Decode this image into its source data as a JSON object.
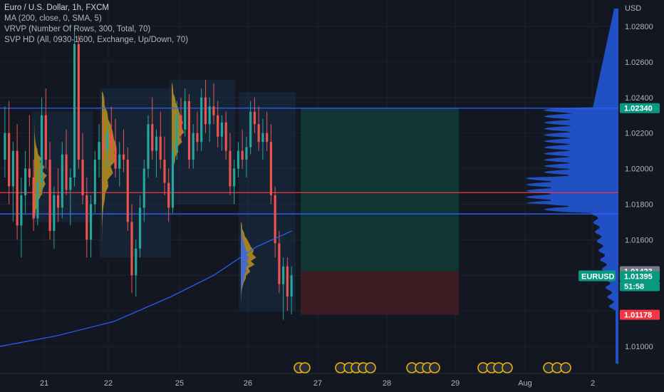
{
  "legend": {
    "title": "Euro / U.S. Dollar, 1h, FXCM",
    "lines": [
      "MA (200, close, 0, SMA, 5)",
      "VRVP (Number Of Rows, 300, Total, 70)",
      "SVP HD (All, 0930-1600, Exchange, Up/Down, 70)"
    ]
  },
  "axis": {
    "currency": "USD",
    "price_ticks": [
      "1.02800",
      "1.02600",
      "1.02400",
      "1.02200",
      "1.02000",
      "1.01800",
      "1.01600",
      "1.01000"
    ],
    "time_ticks": [
      "21",
      "22",
      "25",
      "26",
      "27",
      "28",
      "29",
      "Aug",
      "2"
    ]
  },
  "price_tags": [
    {
      "label": "1.02340",
      "bg": "#089981",
      "fg": "#ffffff"
    },
    {
      "label": "1.01423",
      "bg": "#787b86",
      "fg": "#ffffff"
    },
    {
      "label": "1.01395",
      "bg": "#089981",
      "fg": "#ffffff"
    },
    {
      "label": "51:58",
      "bg": "#089981",
      "fg": "#ffffff"
    },
    {
      "label": "1.01178",
      "bg": "#f23645",
      "fg": "#ffffff"
    }
  ],
  "symbol_tag": {
    "label": "EURUSD",
    "bg": "#089981",
    "fg": "#ffffff"
  },
  "colors": {
    "up": "#26a69a",
    "down": "#ef5350",
    "ma": "#2962ff",
    "hline_blue": "#2962ff",
    "hline_red": "#f23645",
    "profile": "#2457d6",
    "svp_up": "#2962ff",
    "svp_down": "#d4a017",
    "tp_zone": "#0f3a35",
    "sl_zone": "#3d1c24"
  },
  "chart_data": {
    "type": "candlestick",
    "symbol": "Euro / U.S. Dollar",
    "timeframe": "1h",
    "ylim": [
      1.009,
      1.03
    ],
    "price_levels": [
      1.0234,
      1.01865,
      1.01745
    ],
    "trade_box": {
      "entry": 1.01423,
      "take_profit": 1.0234,
      "stop_loss": 1.01178
    },
    "last_price": 1.01395,
    "ohlc": [
      [
        1.0205,
        1.0235,
        1.0195,
        1.022
      ],
      [
        1.022,
        1.0238,
        1.018,
        1.019
      ],
      [
        1.019,
        1.0215,
        1.017,
        1.021
      ],
      [
        1.021,
        1.0225,
        1.016,
        1.0168
      ],
      [
        1.0168,
        1.0195,
        1.015,
        1.0185
      ],
      [
        1.0185,
        1.021,
        1.0175,
        1.02
      ],
      [
        1.02,
        1.023,
        1.019,
        1.0195
      ],
      [
        1.0195,
        1.0205,
        1.0165,
        1.0172
      ],
      [
        1.0172,
        1.02,
        1.0168,
        1.0192
      ],
      [
        1.0192,
        1.024,
        1.0185,
        1.023
      ],
      [
        1.023,
        1.0245,
        1.02,
        1.0205
      ],
      [
        1.0205,
        1.0215,
        1.016,
        1.0165
      ],
      [
        1.0165,
        1.019,
        1.0155,
        1.0185
      ],
      [
        1.0185,
        1.02,
        1.017,
        1.0178
      ],
      [
        1.0178,
        1.0215,
        1.0172,
        1.0208
      ],
      [
        1.0208,
        1.0222,
        1.0185,
        1.0188
      ],
      [
        1.0188,
        1.02,
        1.0168,
        1.0195
      ],
      [
        1.0195,
        1.028,
        1.019,
        1.027
      ],
      [
        1.027,
        1.0275,
        1.02,
        1.0205
      ],
      [
        1.0205,
        1.022,
        1.018,
        1.0185
      ],
      [
        1.0185,
        1.0195,
        1.015,
        1.016
      ],
      [
        1.016,
        1.0185,
        1.015,
        1.018
      ],
      [
        1.018,
        1.021,
        1.0175,
        1.0205
      ],
      [
        1.0205,
        1.0225,
        1.0195,
        1.0215
      ],
      [
        1.0215,
        1.023,
        1.0205,
        1.021
      ],
      [
        1.021,
        1.0225,
        1.02,
        1.022
      ],
      [
        1.022,
        1.0235,
        1.0205,
        1.0212
      ],
      [
        1.0212,
        1.0228,
        1.0195,
        1.02
      ],
      [
        1.02,
        1.0215,
        1.019,
        1.0208
      ],
      [
        1.0208,
        1.0222,
        1.0198,
        1.0205
      ],
      [
        1.0205,
        1.0212,
        1.0165,
        1.017
      ],
      [
        1.017,
        1.018,
        1.013,
        1.014
      ],
      [
        1.014,
        1.016,
        1.0128,
        1.0155
      ],
      [
        1.0155,
        1.0185,
        1.015,
        1.0178
      ],
      [
        1.0178,
        1.0205,
        1.017,
        1.02
      ],
      [
        1.02,
        1.023,
        1.0195,
        1.0225
      ],
      [
        1.0225,
        1.024,
        1.0205,
        1.021
      ],
      [
        1.021,
        1.0222,
        1.0195,
        1.0218
      ],
      [
        1.0218,
        1.0232,
        1.02,
        1.0205
      ],
      [
        1.0205,
        1.0218,
        1.0185,
        1.0192
      ],
      [
        1.0192,
        1.02,
        1.017,
        1.0178
      ],
      [
        1.0178,
        1.0215,
        1.0175,
        1.021
      ],
      [
        1.021,
        1.0238,
        1.0205,
        1.023
      ],
      [
        1.023,
        1.024,
        1.0215,
        1.0222
      ],
      [
        1.0222,
        1.0245,
        1.0218,
        1.0238
      ],
      [
        1.0238,
        1.0242,
        1.02,
        1.0205
      ],
      [
        1.0205,
        1.0225,
        1.02,
        1.022
      ],
      [
        1.022,
        1.0232,
        1.021,
        1.0215
      ],
      [
        1.0215,
        1.0245,
        1.021,
        1.024
      ],
      [
        1.024,
        1.025,
        1.022,
        1.0225
      ],
      [
        1.0225,
        1.024,
        1.0215,
        1.0235
      ],
      [
        1.0235,
        1.0248,
        1.0225,
        1.023
      ],
      [
        1.023,
        1.0238,
        1.0212,
        1.0218
      ],
      [
        1.0218,
        1.023,
        1.021,
        1.0226
      ],
      [
        1.0226,
        1.0232,
        1.0205,
        1.021
      ],
      [
        1.021,
        1.022,
        1.0185,
        1.019
      ],
      [
        1.019,
        1.0205,
        1.018,
        1.02
      ],
      [
        1.02,
        1.0215,
        1.0195,
        1.021
      ],
      [
        1.021,
        1.0222,
        1.02,
        1.0205
      ],
      [
        1.0205,
        1.0218,
        1.0195,
        1.0212
      ],
      [
        1.0212,
        1.0238,
        1.0208,
        1.0232
      ],
      [
        1.0232,
        1.024,
        1.022,
        1.0225
      ],
      [
        1.0225,
        1.0235,
        1.021,
        1.0215
      ],
      [
        1.0215,
        1.0228,
        1.0205,
        1.022
      ],
      [
        1.022,
        1.0232,
        1.021,
        1.0215
      ],
      [
        1.0215,
        1.0225,
        1.018,
        1.0185
      ],
      [
        1.0185,
        1.019,
        1.015,
        1.0158
      ],
      [
        1.0158,
        1.0165,
        1.013,
        1.0135
      ],
      [
        1.0135,
        1.015,
        1.0115,
        1.0145
      ],
      [
        1.0145,
        1.015,
        1.012,
        1.0128
      ],
      [
        1.0128,
        1.0145,
        1.0118,
        1.014
      ]
    ]
  }
}
